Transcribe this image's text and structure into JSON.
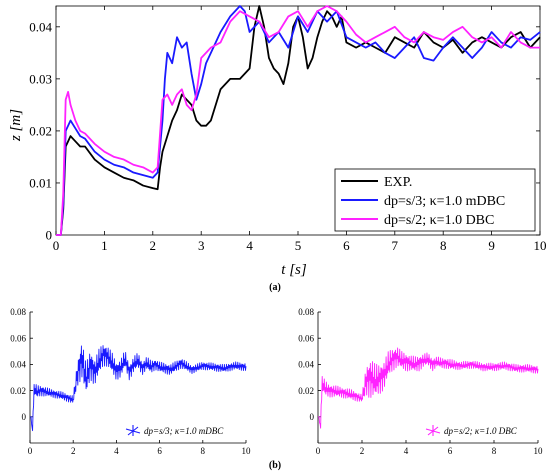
{
  "panel_labels": {
    "a": "(a)",
    "b": "(b)"
  },
  "chart_data": [
    {
      "type": "line",
      "panel": "(a)",
      "xlabel": "t [s]",
      "ylabel": "z [m]",
      "xlim": [
        0,
        10
      ],
      "ylim": [
        0,
        0.044
      ],
      "xticks": [
        "0",
        "1",
        "2",
        "3",
        "4",
        "5",
        "6",
        "7",
        "8",
        "9",
        "10"
      ],
      "yticks": [
        "0",
        "0.01",
        "0.02",
        "0.03",
        "0.04"
      ],
      "legend_position": "bottom-right",
      "series": [
        {
          "name": "EXP.",
          "color": "#000000",
          "x": [
            0,
            0.1,
            0.15,
            0.2,
            0.25,
            0.3,
            0.4,
            0.5,
            0.6,
            0.8,
            1.0,
            1.2,
            1.4,
            1.6,
            1.8,
            2.0,
            2.1,
            2.15,
            2.2,
            2.3,
            2.4,
            2.5,
            2.6,
            2.7,
            2.8,
            2.9,
            3.0,
            3.1,
            3.2,
            3.4,
            3.6,
            3.8,
            4.0,
            4.1,
            4.2,
            4.3,
            4.4,
            4.5,
            4.6,
            4.7,
            4.8,
            4.9,
            5.0,
            5.1,
            5.2,
            5.3,
            5.4,
            5.5,
            5.6,
            5.7,
            5.8,
            5.9,
            6.0,
            6.2,
            6.4,
            6.6,
            6.8,
            7.0,
            7.2,
            7.4,
            7.6,
            7.8,
            8.0,
            8.2,
            8.4,
            8.6,
            8.8,
            9.0,
            9.2,
            9.4,
            9.6,
            9.8,
            10.0
          ],
          "y": [
            0,
            0,
            0.005,
            0.017,
            0.018,
            0.019,
            0.018,
            0.017,
            0.017,
            0.0145,
            0.013,
            0.012,
            0.011,
            0.0105,
            0.0095,
            0.009,
            0.0088,
            0.013,
            0.016,
            0.019,
            0.022,
            0.024,
            0.027,
            0.026,
            0.025,
            0.022,
            0.021,
            0.021,
            0.022,
            0.028,
            0.03,
            0.03,
            0.032,
            0.04,
            0.044,
            0.04,
            0.034,
            0.032,
            0.031,
            0.029,
            0.033,
            0.04,
            0.042,
            0.038,
            0.032,
            0.034,
            0.038,
            0.041,
            0.043,
            0.042,
            0.04,
            0.042,
            0.037,
            0.036,
            0.037,
            0.036,
            0.035,
            0.038,
            0.037,
            0.036,
            0.039,
            0.037,
            0.036,
            0.0375,
            0.035,
            0.037,
            0.038,
            0.037,
            0.036,
            0.038,
            0.039,
            0.036,
            0.038
          ]
        },
        {
          "name": "dp=s/3; κ=1.0 mDBC",
          "color": "#1a1aff",
          "x": [
            0,
            0.1,
            0.15,
            0.2,
            0.25,
            0.3,
            0.4,
            0.5,
            0.6,
            0.8,
            1.0,
            1.2,
            1.4,
            1.6,
            1.8,
            2.0,
            2.1,
            2.2,
            2.25,
            2.3,
            2.4,
            2.5,
            2.6,
            2.7,
            2.8,
            2.9,
            3.0,
            3.1,
            3.2,
            3.4,
            3.6,
            3.8,
            3.9,
            4.0,
            4.2,
            4.4,
            4.6,
            4.8,
            5.0,
            5.2,
            5.4,
            5.6,
            5.8,
            6.0,
            6.2,
            6.4,
            6.6,
            6.8,
            7.0,
            7.2,
            7.4,
            7.6,
            7.8,
            8.0,
            8.2,
            8.4,
            8.6,
            8.8,
            9.0,
            9.2,
            9.4,
            9.6,
            9.8,
            10.0
          ],
          "y": [
            0,
            0,
            0.006,
            0.02,
            0.021,
            0.022,
            0.0205,
            0.019,
            0.0185,
            0.016,
            0.0145,
            0.0135,
            0.013,
            0.012,
            0.0115,
            0.011,
            0.012,
            0.022,
            0.03,
            0.035,
            0.033,
            0.038,
            0.036,
            0.037,
            0.031,
            0.026,
            0.029,
            0.033,
            0.035,
            0.039,
            0.042,
            0.044,
            0.043,
            0.039,
            0.041,
            0.037,
            0.039,
            0.036,
            0.042,
            0.039,
            0.043,
            0.041,
            0.043,
            0.038,
            0.037,
            0.036,
            0.037,
            0.035,
            0.034,
            0.036,
            0.038,
            0.034,
            0.0335,
            0.036,
            0.038,
            0.036,
            0.034,
            0.036,
            0.039,
            0.037,
            0.036,
            0.038,
            0.0375,
            0.039
          ]
        },
        {
          "name": "dp=s/2; κ=1.0 DBC",
          "color": "#ff22ff",
          "x": [
            0,
            0.1,
            0.15,
            0.2,
            0.25,
            0.3,
            0.4,
            0.5,
            0.6,
            0.8,
            1.0,
            1.2,
            1.4,
            1.6,
            1.8,
            2.0,
            2.1,
            2.2,
            2.3,
            2.4,
            2.5,
            2.6,
            2.7,
            2.8,
            2.9,
            3.0,
            3.2,
            3.4,
            3.6,
            3.8,
            4.0,
            4.2,
            4.4,
            4.6,
            4.8,
            5.0,
            5.2,
            5.4,
            5.6,
            5.8,
            6.0,
            6.2,
            6.4,
            6.6,
            6.8,
            7.0,
            7.2,
            7.4,
            7.6,
            7.8,
            8.0,
            8.2,
            8.4,
            8.6,
            8.8,
            9.0,
            9.2,
            9.4,
            9.6,
            9.8,
            10.0
          ],
          "y": [
            0,
            0,
            0.008,
            0.026,
            0.0275,
            0.025,
            0.022,
            0.02,
            0.0195,
            0.0175,
            0.016,
            0.015,
            0.0145,
            0.0135,
            0.013,
            0.012,
            0.013,
            0.026,
            0.027,
            0.025,
            0.027,
            0.028,
            0.025,
            0.024,
            0.027,
            0.034,
            0.036,
            0.037,
            0.041,
            0.043,
            0.042,
            0.041,
            0.038,
            0.039,
            0.042,
            0.043,
            0.04,
            0.043,
            0.044,
            0.043,
            0.041,
            0.0385,
            0.037,
            0.038,
            0.039,
            0.04,
            0.038,
            0.037,
            0.039,
            0.038,
            0.0375,
            0.039,
            0.04,
            0.038,
            0.037,
            0.038,
            0.036,
            0.039,
            0.037,
            0.036,
            0.036
          ]
        }
      ]
    },
    {
      "type": "line",
      "panel": "(b) left",
      "xlim": [
        0,
        10
      ],
      "ylim": [
        -0.02,
        0.08
      ],
      "xticks": [
        "0",
        "2",
        "4",
        "6",
        "8",
        "10"
      ],
      "yticks": [
        "0",
        "0.02",
        "0.04",
        "0.06",
        "0.08"
      ],
      "legend_position": "bottom-right",
      "series": [
        {
          "name": "dp=s/3; κ=1.0 mDBC",
          "color": "#1a1aff",
          "x": [
            0,
            0.05,
            0.1,
            0.15,
            0.2,
            0.3,
            0.5,
            1.0,
            1.5,
            2.0,
            2.2,
            2.4,
            2.6,
            2.8,
            3.0,
            3.2,
            3.4,
            3.6,
            3.8,
            4.0,
            4.2,
            4.4,
            4.6,
            4.8,
            5.0,
            5.2,
            5.4,
            5.6,
            5.8,
            6.0,
            6.5,
            7.0,
            7.5,
            8.0,
            8.5,
            9.0,
            9.5,
            10.0
          ],
          "y": [
            0,
            0,
            -0.012,
            0.005,
            0.022,
            0.019,
            0.02,
            0.018,
            0.016,
            0.013,
            0.033,
            0.045,
            0.028,
            0.04,
            0.034,
            0.042,
            0.048,
            0.046,
            0.041,
            0.035,
            0.037,
            0.044,
            0.034,
            0.04,
            0.043,
            0.037,
            0.041,
            0.038,
            0.04,
            0.038,
            0.036,
            0.041,
            0.036,
            0.039,
            0.038,
            0.037,
            0.039,
            0.038
          ],
          "amp": [
            0,
            0,
            0.004,
            0.008,
            0.006,
            0.005,
            0.004,
            0.003,
            0.003,
            0.003,
            0.01,
            0.015,
            0.012,
            0.012,
            0.01,
            0.01,
            0.009,
            0.008,
            0.008,
            0.007,
            0.007,
            0.007,
            0.006,
            0.006,
            0.006,
            0.005,
            0.005,
            0.005,
            0.004,
            0.004,
            0.004,
            0.004,
            0.003,
            0.003,
            0.003,
            0.003,
            0.003,
            0.003
          ]
        }
      ]
    },
    {
      "type": "line",
      "panel": "(b) right",
      "xlim": [
        0,
        10
      ],
      "ylim": [
        -0.02,
        0.08
      ],
      "xticks": [
        "0",
        "2",
        "4",
        "6",
        "8",
        "10"
      ],
      "yticks": [
        "0",
        "0.02",
        "0.04",
        "0.06",
        "0.08"
      ],
      "legend_position": "bottom-right",
      "series": [
        {
          "name": "dp=s/2; κ=1.0 DBC",
          "color": "#ff22ff",
          "x": [
            0,
            0.05,
            0.1,
            0.15,
            0.2,
            0.3,
            0.5,
            1.0,
            1.5,
            2.0,
            2.2,
            2.4,
            2.6,
            2.8,
            3.0,
            3.2,
            3.4,
            3.6,
            3.8,
            4.0,
            4.2,
            4.4,
            4.6,
            4.8,
            5.0,
            5.2,
            5.4,
            5.6,
            5.8,
            6.0,
            6.5,
            7.0,
            7.5,
            8.0,
            8.5,
            9.0,
            9.5,
            10.0
          ],
          "y": [
            0,
            0,
            -0.01,
            0.01,
            0.026,
            0.022,
            0.02,
            0.019,
            0.017,
            0.014,
            0.028,
            0.03,
            0.027,
            0.029,
            0.032,
            0.04,
            0.044,
            0.046,
            0.043,
            0.042,
            0.041,
            0.04,
            0.041,
            0.043,
            0.044,
            0.04,
            0.042,
            0.041,
            0.041,
            0.04,
            0.039,
            0.04,
            0.038,
            0.038,
            0.039,
            0.037,
            0.037,
            0.036
          ],
          "amp": [
            0,
            0,
            0.005,
            0.01,
            0.008,
            0.006,
            0.005,
            0.004,
            0.004,
            0.003,
            0.012,
            0.016,
            0.013,
            0.012,
            0.011,
            0.01,
            0.009,
            0.008,
            0.007,
            0.007,
            0.006,
            0.006,
            0.006,
            0.005,
            0.005,
            0.005,
            0.004,
            0.004,
            0.004,
            0.004,
            0.003,
            0.003,
            0.003,
            0.003,
            0.003,
            0.003,
            0.003,
            0.003
          ]
        }
      ]
    }
  ]
}
